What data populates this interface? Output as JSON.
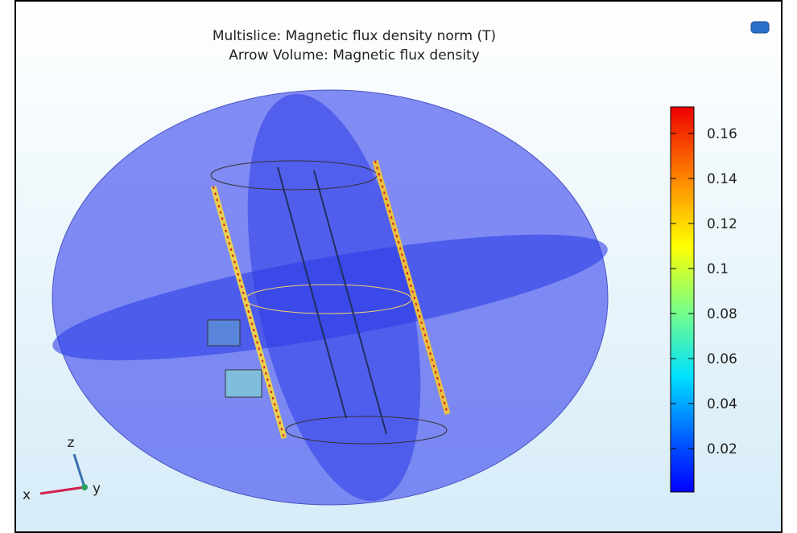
{
  "title_lines": [
    "Multislice: Magnetic flux density norm (T)",
    "Arrow Volume: Magnetic flux density"
  ],
  "colorbar": {
    "lim": [
      0.0007,
      0.1718
    ],
    "ticks": [
      0.02,
      0.04,
      0.06,
      0.08,
      0.1,
      0.12,
      0.14,
      0.16
    ]
  },
  "axes_triad": {
    "x": "x",
    "y": "y",
    "z": "z"
  }
}
